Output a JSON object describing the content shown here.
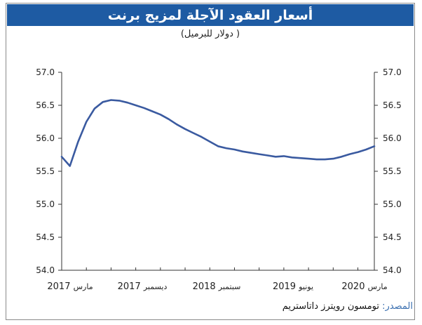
{
  "title": "أسعار العقود الآجلة لمزيج برنت",
  "subtitle": "( دولار للبرميل)",
  "source": {
    "label": "المصدر:",
    "text": "تومسون رويترز داتاستريم"
  },
  "colors": {
    "title_bg": "#1e5ba3",
    "line": "#3a5aa0",
    "source_label": "#3a6fb0"
  },
  "chart_data": {
    "type": "line",
    "title": "أسعار العقود الآجلة لمزيج برنت",
    "ylabel": "( دولار للبرميل)",
    "ylim": [
      54.0,
      57.0
    ],
    "yticks": [
      "57.0",
      "56.5",
      "56.0",
      "55.5",
      "55.0",
      "54.5",
      "54.0"
    ],
    "xlim": [
      "2017-03",
      "2020-05"
    ],
    "x_tick_labels": [
      {
        "year": "2017",
        "month": "مارس"
      },
      {
        "year": "2017",
        "month": "ديسمبر"
      },
      {
        "year": "2018",
        "month": "سبتمبر"
      },
      {
        "year": "2019",
        "month": "يونيو"
      },
      {
        "year": "2020",
        "month": "مارس"
      }
    ],
    "series": [
      {
        "values": [
          {
            "x": "2017-03",
            "y": 55.72
          },
          {
            "x": "2017-04",
            "y": 55.58
          },
          {
            "x": "2017-05",
            "y": 55.95
          },
          {
            "x": "2017-06",
            "y": 56.25
          },
          {
            "x": "2017-07",
            "y": 56.45
          },
          {
            "x": "2017-08",
            "y": 56.55
          },
          {
            "x": "2017-09",
            "y": 56.58
          },
          {
            "x": "2017-10",
            "y": 56.57
          },
          {
            "x": "2017-11",
            "y": 56.54
          },
          {
            "x": "2017-12",
            "y": 56.5
          },
          {
            "x": "2018-01",
            "y": 56.46
          },
          {
            "x": "2018-02",
            "y": 56.41
          },
          {
            "x": "2018-03",
            "y": 56.36
          },
          {
            "x": "2018-04",
            "y": 56.29
          },
          {
            "x": "2018-05",
            "y": 56.21
          },
          {
            "x": "2018-06",
            "y": 56.14
          },
          {
            "x": "2018-07",
            "y": 56.08
          },
          {
            "x": "2018-08",
            "y": 56.02
          },
          {
            "x": "2018-09",
            "y": 55.95
          },
          {
            "x": "2018-10",
            "y": 55.88
          },
          {
            "x": "2018-11",
            "y": 55.85
          },
          {
            "x": "2018-12",
            "y": 55.83
          },
          {
            "x": "2019-01",
            "y": 55.8
          },
          {
            "x": "2019-02",
            "y": 55.78
          },
          {
            "x": "2019-03",
            "y": 55.76
          },
          {
            "x": "2019-04",
            "y": 55.74
          },
          {
            "x": "2019-05",
            "y": 55.72
          },
          {
            "x": "2019-06",
            "y": 55.73
          },
          {
            "x": "2019-07",
            "y": 55.71
          },
          {
            "x": "2019-08",
            "y": 55.7
          },
          {
            "x": "2019-09",
            "y": 55.69
          },
          {
            "x": "2019-10",
            "y": 55.68
          },
          {
            "x": "2019-11",
            "y": 55.68
          },
          {
            "x": "2019-12",
            "y": 55.69
          },
          {
            "x": "2020-01",
            "y": 55.72
          },
          {
            "x": "2020-02",
            "y": 55.76
          },
          {
            "x": "2020-03",
            "y": 55.79
          },
          {
            "x": "2020-04",
            "y": 55.83
          },
          {
            "x": "2020-05",
            "y": 55.88
          }
        ]
      }
    ]
  }
}
